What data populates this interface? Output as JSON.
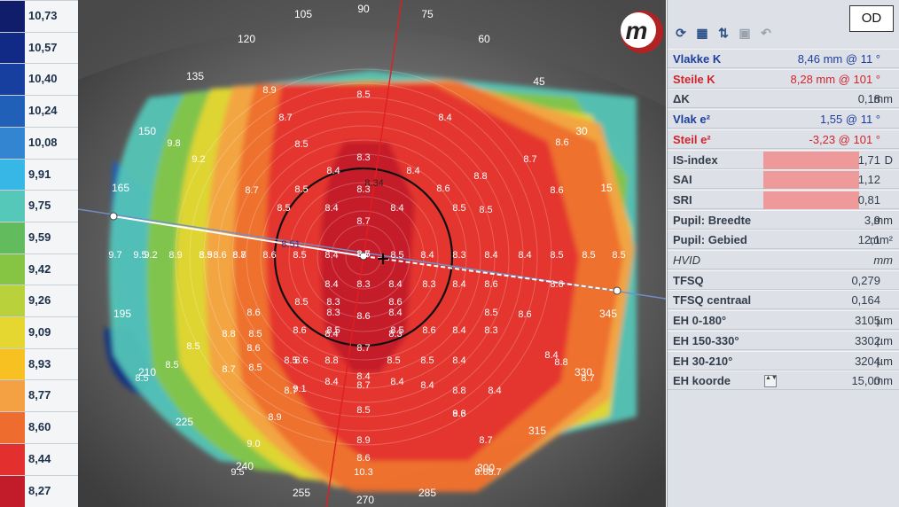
{
  "legend": [
    {
      "value": "10,73",
      "color": "#0f1d6b"
    },
    {
      "value": "10,57",
      "color": "#102a85"
    },
    {
      "value": "10,40",
      "color": "#173f9f"
    },
    {
      "value": "10,24",
      "color": "#2160b8"
    },
    {
      "value": "10,08",
      "color": "#3385d2"
    },
    {
      "value": "9,91",
      "color": "#37b7e6"
    },
    {
      "value": "9,75",
      "color": "#55c8b9"
    },
    {
      "value": "9,59",
      "color": "#62bb5c"
    },
    {
      "value": "9,42",
      "color": "#86c443"
    },
    {
      "value": "9,26",
      "color": "#b9d13a"
    },
    {
      "value": "9,09",
      "color": "#e6d630"
    },
    {
      "value": "8,93",
      "color": "#f7c221"
    },
    {
      "value": "8,77",
      "color": "#f4a144"
    },
    {
      "value": "8,60",
      "color": "#ee6c2e"
    },
    {
      "value": "8,44",
      "color": "#e3302e"
    },
    {
      "value": "8,27",
      "color": "#c21c2a"
    }
  ],
  "map": {
    "degrees": [
      "90",
      "75",
      "60",
      "45",
      "30",
      "15",
      "345",
      "330",
      "315",
      "300",
      "285",
      "270",
      "255",
      "240",
      "225",
      "210",
      "195",
      "165",
      "150",
      "135",
      "120",
      "105"
    ],
    "pupil_labels": [
      "8.34",
      "8.51"
    ],
    "values": [
      "8.9",
      "8.5",
      "8.7",
      "8.4",
      "8.5",
      "8.3",
      "8.3",
      "8.5",
      "8.4",
      "8.4",
      "8.6",
      "8.8",
      "8.7",
      "8.6",
      "8.6",
      "9.8",
      "9.2",
      "8.5",
      "8.4",
      "8.4",
      "8.7",
      "8.5",
      "8.7",
      "8.5",
      "8.8",
      "8.6",
      "8.9",
      "8.5",
      "9.5",
      "9.7",
      "9.2",
      "8.9",
      "8.7",
      "8.6",
      "8.5",
      "8.4",
      "8.5",
      "8.4",
      "8.3",
      "8.4",
      "8.4",
      "8.5",
      "8.5",
      "8.5",
      "8.6",
      "8.6",
      "8.3",
      "8.3",
      "8.6",
      "8.5",
      "8.4",
      "8.4",
      "8.3",
      "8.4",
      "8.6",
      "8.6",
      "8.6",
      "8.6",
      "8.6",
      "8.7",
      "8.5",
      "8.8",
      "8.7",
      "8.5",
      "8.4",
      "8.3",
      "8.4",
      "8.5",
      "8.5",
      "8.6",
      "8.6",
      "8.4",
      "8.5",
      "8.4",
      "8.6",
      "8.4",
      "8.5",
      "8.3",
      "8.4",
      "8.4",
      "8.5",
      "8.5",
      "8.3",
      "8.4",
      "8.5",
      "8.8",
      "8.7",
      "8.7",
      "8.8",
      "8.4",
      "8.4",
      "8.5",
      "8.5",
      "8.5",
      "8.9",
      "9.0",
      "9.5",
      "10.3",
      "8.9",
      "9.1",
      "9.3",
      "8.8",
      "8.7",
      "8.7",
      "8.6",
      "8.7",
      "8.6",
      "8.5",
      "8.6",
      "8.7"
    ],
    "logo_letter": "m"
  },
  "panel": {
    "eye": "OD",
    "toolbar": [
      {
        "icon": "refresh-icon",
        "glyph": "⟳"
      },
      {
        "icon": "calendar-icon",
        "glyph": "▦"
      },
      {
        "icon": "sort-arrows-icon",
        "glyph": "⇅"
      },
      {
        "icon": "save-icon",
        "glyph": "▣"
      },
      {
        "icon": "undo-icon",
        "glyph": "↶"
      }
    ],
    "rows": [
      {
        "label": "Vlakke K",
        "value": "8,46 mm @  11 °",
        "style": "blue"
      },
      {
        "label": "Steile K",
        "value": "8,28 mm @ 101 °",
        "style": "red"
      },
      {
        "label": "ΔK",
        "value": "0,18",
        "unit": "mm"
      },
      {
        "label": "Vlak e²",
        "value": "1,55 @  11 °",
        "style": "blue"
      },
      {
        "label": "Steil e²",
        "value": "-3,23 @ 101 °",
        "style": "red"
      },
      {
        "label": "IS-index",
        "value": "1,71",
        "unit": "D",
        "highlight": true
      },
      {
        "label": "SAI",
        "value": "1,12",
        "highlight": true
      },
      {
        "label": "SRI",
        "value": "0,81",
        "highlight": true
      },
      {
        "label": "Pupil: Breedte",
        "value": "3,9",
        "unit": "mm"
      },
      {
        "label": "Pupil: Gebied",
        "value": "12,1",
        "unit": "mm²"
      },
      {
        "label": "HVID",
        "value": "",
        "unit": "mm",
        "style": "italic"
      },
      {
        "label": "TFSQ",
        "value": "0,279"
      },
      {
        "label": "TFSQ centraal",
        "value": "0,164"
      },
      {
        "label": "EH 0-180°",
        "value": "3105",
        "unit": "µm"
      },
      {
        "label": "EH 150-330°",
        "value": "3302",
        "unit": "µm"
      },
      {
        "label": "EH 30-210°",
        "value": "3204",
        "unit": "µm"
      },
      {
        "label": "EH koorde",
        "value": "15,00",
        "unit": "mm",
        "spinner": true
      }
    ]
  }
}
